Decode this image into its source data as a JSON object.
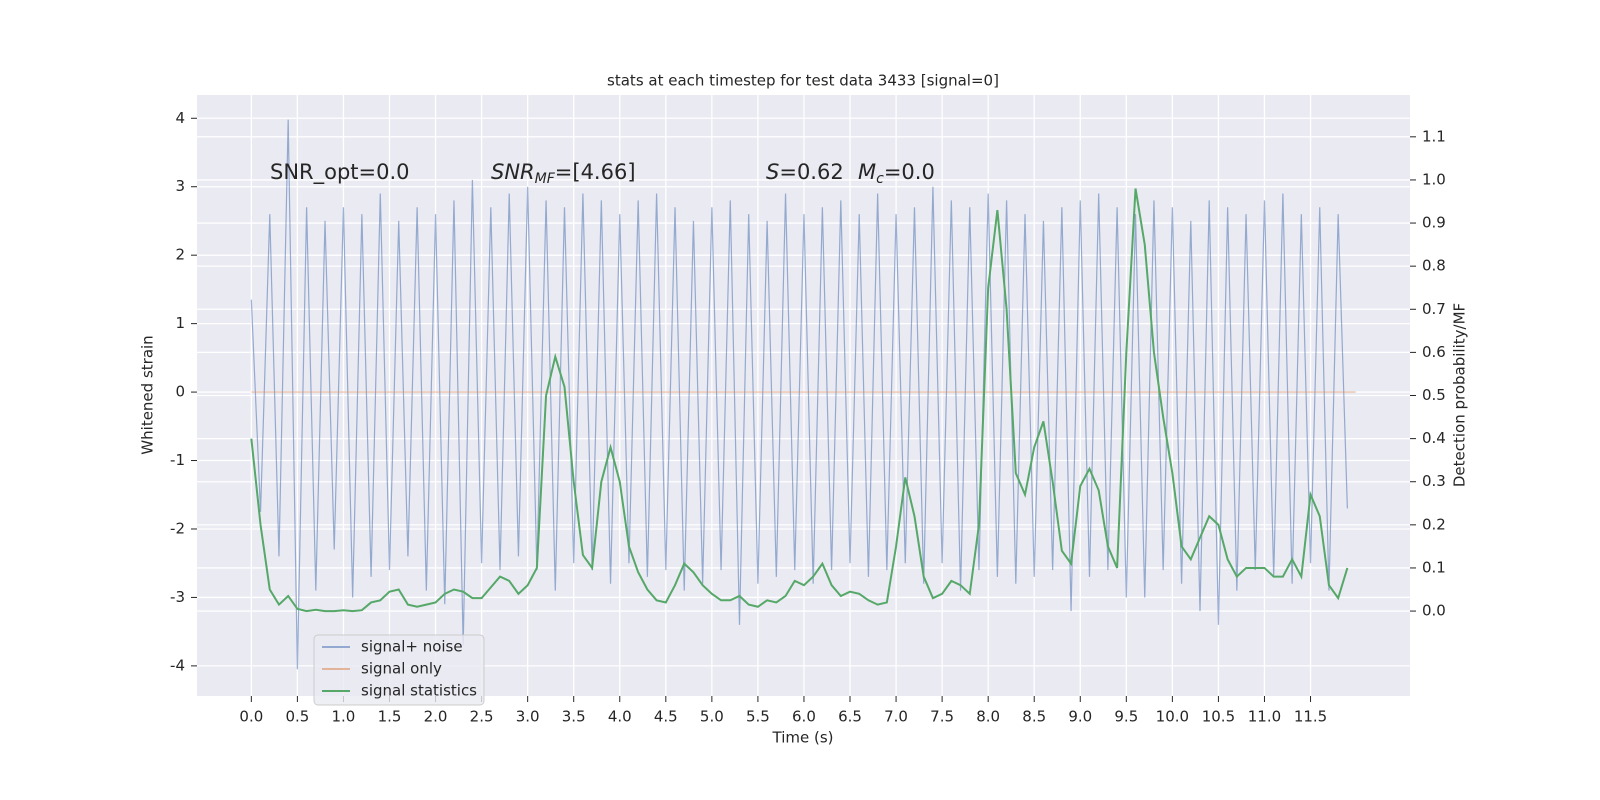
{
  "chart_data": {
    "type": "line",
    "title": "stats at each timestep for test data 3433 [signal=0]",
    "xlabel": "Time (s)",
    "ylabel": "Whitened strain",
    "y2label": "Detection probability/MF",
    "grid": true,
    "legend": "lower left",
    "annotations": [
      {
        "base": "SNR_opt=0.0"
      },
      {
        "base": "SNR",
        "sub": "MF",
        "rest": "=[4.66]"
      },
      {
        "base": "S",
        "rest": "=0.62"
      },
      {
        "base": "M",
        "sub": "c",
        "rest": "=0.0"
      }
    ],
    "xlim": [
      -0.59,
      12.58
    ],
    "ylim": [
      -4.44,
      4.34
    ],
    "y2lim": [
      -0.197,
      1.197
    ],
    "xticks": [
      {
        "value": 0,
        "label": "0.0"
      },
      {
        "value": 0.5,
        "label": "0.5"
      },
      {
        "value": 1,
        "label": "1.0"
      },
      {
        "value": 1.5,
        "label": "1.5"
      },
      {
        "value": 2,
        "label": "2.0"
      },
      {
        "value": 2.5,
        "label": "2.5"
      },
      {
        "value": 3,
        "label": "3.0"
      },
      {
        "value": 3.5,
        "label": "3.5"
      },
      {
        "value": 4,
        "label": "4.0"
      },
      {
        "value": 4.5,
        "label": "4.5"
      },
      {
        "value": 5,
        "label": "5.0"
      },
      {
        "value": 5.5,
        "label": "5.5"
      },
      {
        "value": 6,
        "label": "6.0"
      },
      {
        "value": 6.5,
        "label": "6.5"
      },
      {
        "value": 7,
        "label": "7.0"
      },
      {
        "value": 7.5,
        "label": "7.5"
      },
      {
        "value": 8,
        "label": "8.0"
      },
      {
        "value": 8.5,
        "label": "8.5"
      },
      {
        "value": 9,
        "label": "9.0"
      },
      {
        "value": 9.5,
        "label": "9.5"
      },
      {
        "value": 10,
        "label": "10.0"
      },
      {
        "value": 10.5,
        "label": "10.5"
      },
      {
        "value": 11,
        "label": "11.0"
      },
      {
        "value": 11.5,
        "label": "11.5"
      }
    ],
    "yticks": [
      -4,
      -3,
      -2,
      -1,
      0,
      1,
      2,
      3,
      4
    ],
    "y2ticks": [
      {
        "value": 0,
        "label": "0.0"
      },
      0.1,
      0.2,
      0.3,
      0.4,
      0.5,
      0.6,
      0.7,
      0.8,
      0.9,
      {
        "value": 1,
        "label": "1.0"
      },
      1.1
    ],
    "x": [
      0,
      0.1,
      0.2,
      0.3,
      0.4,
      0.5,
      0.6,
      0.7,
      0.8,
      0.9,
      1,
      1.1,
      1.2,
      1.3,
      1.4,
      1.5,
      1.6,
      1.7,
      1.8,
      1.9,
      2,
      2.1,
      2.2,
      2.3,
      2.4,
      2.5,
      2.6,
      2.7,
      2.8,
      2.9,
      3,
      3.1,
      3.2,
      3.3,
      3.4,
      3.5,
      3.6,
      3.7,
      3.8,
      3.9,
      4,
      4.1,
      4.2,
      4.3,
      4.4,
      4.5,
      4.6,
      4.7,
      4.8,
      4.9,
      5,
      5.1,
      5.2,
      5.3,
      5.4,
      5.5,
      5.6,
      5.7,
      5.8,
      5.9,
      6,
      6.1,
      6.2,
      6.3,
      6.4,
      6.5,
      6.6,
      6.7,
      6.8,
      6.9,
      7,
      7.1,
      7.2,
      7.3,
      7.4,
      7.5,
      7.6,
      7.7,
      7.8,
      7.9,
      8,
      8.1,
      8.2,
      8.3,
      8.4,
      8.5,
      8.6,
      8.7,
      8.8,
      8.9,
      9,
      9.1,
      9.2,
      9.3,
      9.4,
      9.5,
      9.6,
      9.7,
      9.8,
      9.9,
      10,
      10.1,
      10.2,
      10.3,
      10.4,
      10.5,
      10.6,
      10.7,
      10.8,
      10.9,
      11,
      11.1,
      11.2,
      11.3,
      11.4,
      11.5,
      11.6,
      11.7,
      11.8,
      11.9
    ],
    "series": [
      {
        "name": "signal+ noise",
        "color": "#4c72b0",
        "values": [
          1.35,
          -1.75,
          2.6,
          -2.4,
          3.98,
          -4.05,
          2.7,
          -2.9,
          2.5,
          -2.3,
          2.7,
          -3.0,
          2.6,
          -2.7,
          2.9,
          -2.6,
          2.5,
          -2.4,
          2.7,
          -2.9,
          2.6,
          -3.1,
          2.8,
          -3.7,
          3.1,
          -2.5,
          2.7,
          -2.6,
          2.9,
          -2.4,
          3.0,
          -2.6,
          2.8,
          -2.9,
          2.7,
          -2.5,
          2.9,
          -2.6,
          2.8,
          -2.8,
          2.6,
          -2.5,
          2.8,
          -2.7,
          2.9,
          -2.6,
          2.7,
          -2.9,
          2.5,
          -2.8,
          2.7,
          -2.6,
          2.8,
          -3.4,
          2.6,
          -2.8,
          2.5,
          -2.7,
          2.9,
          -2.6,
          2.6,
          -2.8,
          2.7,
          -2.6,
          2.8,
          -2.5,
          2.6,
          -2.7,
          2.9,
          -2.6,
          2.6,
          -2.5,
          2.7,
          -2.8,
          3.0,
          -2.5,
          2.8,
          -2.9,
          2.7,
          -2.6,
          2.9,
          -2.7,
          2.8,
          -2.8,
          2.6,
          -2.7,
          2.5,
          -2.6,
          2.7,
          -3.2,
          2.8,
          -2.7,
          2.9,
          -2.6,
          2.7,
          -3.0,
          2.6,
          -3.0,
          2.8,
          -2.6,
          2.7,
          -2.8,
          2.5,
          -3.2,
          2.8,
          -3.4,
          2.7,
          -2.9,
          2.6,
          -2.6,
          2.8,
          -2.7,
          2.9,
          -2.8,
          2.6,
          -2.5,
          2.7,
          -2.9,
          2.6,
          -1.7
        ]
      },
      {
        "name": "signal only",
        "color": "#dd8452",
        "x": [
          0,
          11.99
        ],
        "values": [
          0,
          0
        ]
      },
      {
        "name": "signal statistics",
        "color": "#55a868",
        "axis": "y2",
        "values": [
          0.4,
          0.2,
          0.05,
          0.015,
          0.035,
          0.005,
          0.0,
          0.003,
          0.0,
          0.0,
          0.002,
          0.0,
          0.002,
          0.02,
          0.025,
          0.045,
          0.05,
          0.015,
          0.01,
          0.015,
          0.02,
          0.04,
          0.05,
          0.045,
          0.03,
          0.03,
          0.055,
          0.08,
          0.07,
          0.04,
          0.06,
          0.1,
          0.5,
          0.59,
          0.52,
          0.3,
          0.13,
          0.1,
          0.3,
          0.38,
          0.3,
          0.15,
          0.09,
          0.05,
          0.025,
          0.02,
          0.06,
          0.11,
          0.09,
          0.06,
          0.04,
          0.025,
          0.025,
          0.035,
          0.015,
          0.01,
          0.025,
          0.02,
          0.035,
          0.07,
          0.06,
          0.08,
          0.11,
          0.06,
          0.035,
          0.045,
          0.04,
          0.025,
          0.015,
          0.02,
          0.15,
          0.31,
          0.22,
          0.08,
          0.03,
          0.04,
          0.07,
          0.06,
          0.04,
          0.2,
          0.75,
          0.93,
          0.7,
          0.32,
          0.27,
          0.38,
          0.44,
          0.3,
          0.14,
          0.11,
          0.29,
          0.33,
          0.28,
          0.15,
          0.1,
          0.6,
          0.98,
          0.85,
          0.6,
          0.45,
          0.32,
          0.15,
          0.12,
          0.17,
          0.22,
          0.2,
          0.12,
          0.08,
          0.1,
          0.1,
          0.1,
          0.08,
          0.08,
          0.12,
          0.08,
          0.27,
          0.22,
          0.06,
          0.03,
          0.1
        ]
      }
    ]
  }
}
